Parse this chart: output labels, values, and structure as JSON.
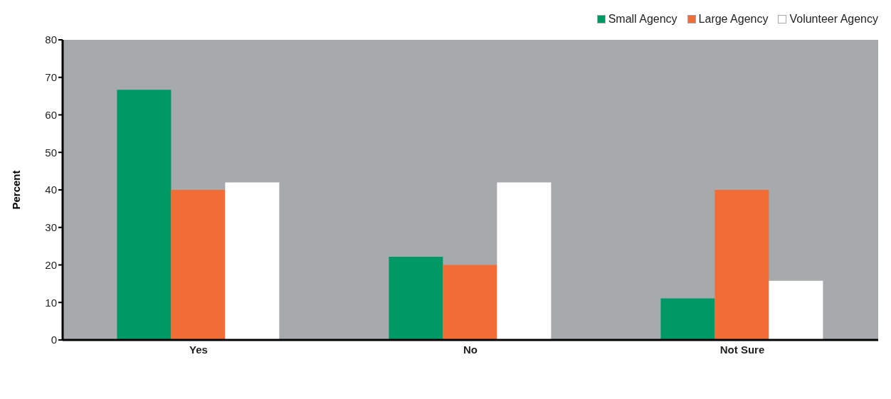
{
  "chart_data": {
    "type": "bar",
    "ylabel": "Percent",
    "categories": [
      "Yes",
      "No",
      "Not Sure"
    ],
    "series": [
      {
        "name": "Small Agency",
        "color": "#009966",
        "values": [
          66.7,
          22.2,
          11.1
        ]
      },
      {
        "name": "Large Agency",
        "color": "#f26d35",
        "values": [
          40,
          20,
          40
        ]
      },
      {
        "name": "Volunteer Agency",
        "color": "#ffffff",
        "values": [
          42,
          42,
          15.8
        ]
      }
    ],
    "ylim": [
      0,
      80
    ],
    "yticks": [
      0,
      10,
      20,
      30,
      40,
      50,
      60,
      70,
      80
    ],
    "legend": "top right",
    "grid": false
  }
}
